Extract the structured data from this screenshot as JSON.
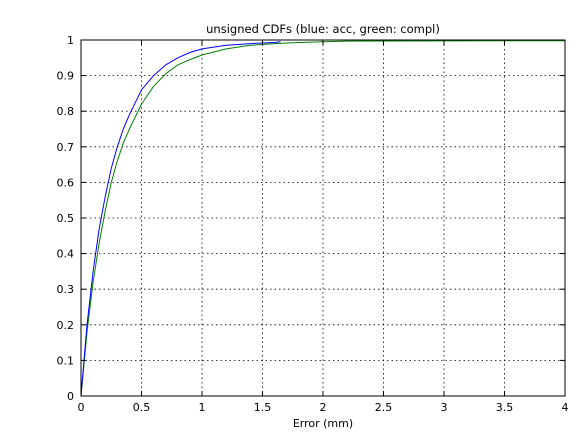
{
  "chart_data": {
    "type": "line",
    "title": "unsigned CDFs (blue: acc, green: compl)",
    "xlabel": "Error (mm)",
    "ylabel": "",
    "xlim": [
      0,
      4
    ],
    "ylim": [
      0,
      1
    ],
    "grid": true,
    "xticks": [
      "0",
      "0.5",
      "1",
      "1.5",
      "2",
      "2.5",
      "3",
      "3.5",
      "4"
    ],
    "yticks": [
      "0",
      "0.1",
      "0.2",
      "0.3",
      "0.4",
      "0.5",
      "0.6",
      "0.7",
      "0.8",
      "0.9",
      "1"
    ],
    "series": [
      {
        "color": "#0000ff",
        "x": [
          0.0,
          0.05,
          0.1,
          0.15,
          0.2,
          0.25,
          0.3,
          0.35,
          0.4,
          0.5,
          0.6,
          0.7,
          0.8,
          0.9,
          1.0,
          1.2,
          1.4,
          1.6,
          1.65
        ],
        "y": [
          0.0,
          0.2,
          0.35,
          0.47,
          0.56,
          0.64,
          0.7,
          0.75,
          0.79,
          0.86,
          0.9,
          0.93,
          0.95,
          0.965,
          0.975,
          0.985,
          0.99,
          0.993,
          0.995
        ]
      },
      {
        "color": "#008000",
        "x": [
          0.0,
          0.05,
          0.1,
          0.15,
          0.2,
          0.25,
          0.3,
          0.35,
          0.4,
          0.5,
          0.6,
          0.7,
          0.8,
          0.9,
          1.0,
          1.2,
          1.4,
          1.6,
          1.8,
          2.0,
          2.2,
          4.0
        ],
        "y": [
          0.0,
          0.18,
          0.32,
          0.43,
          0.52,
          0.6,
          0.66,
          0.71,
          0.75,
          0.82,
          0.87,
          0.905,
          0.93,
          0.945,
          0.958,
          0.975,
          0.985,
          0.99,
          0.993,
          0.995,
          0.997,
          0.998
        ]
      }
    ]
  }
}
